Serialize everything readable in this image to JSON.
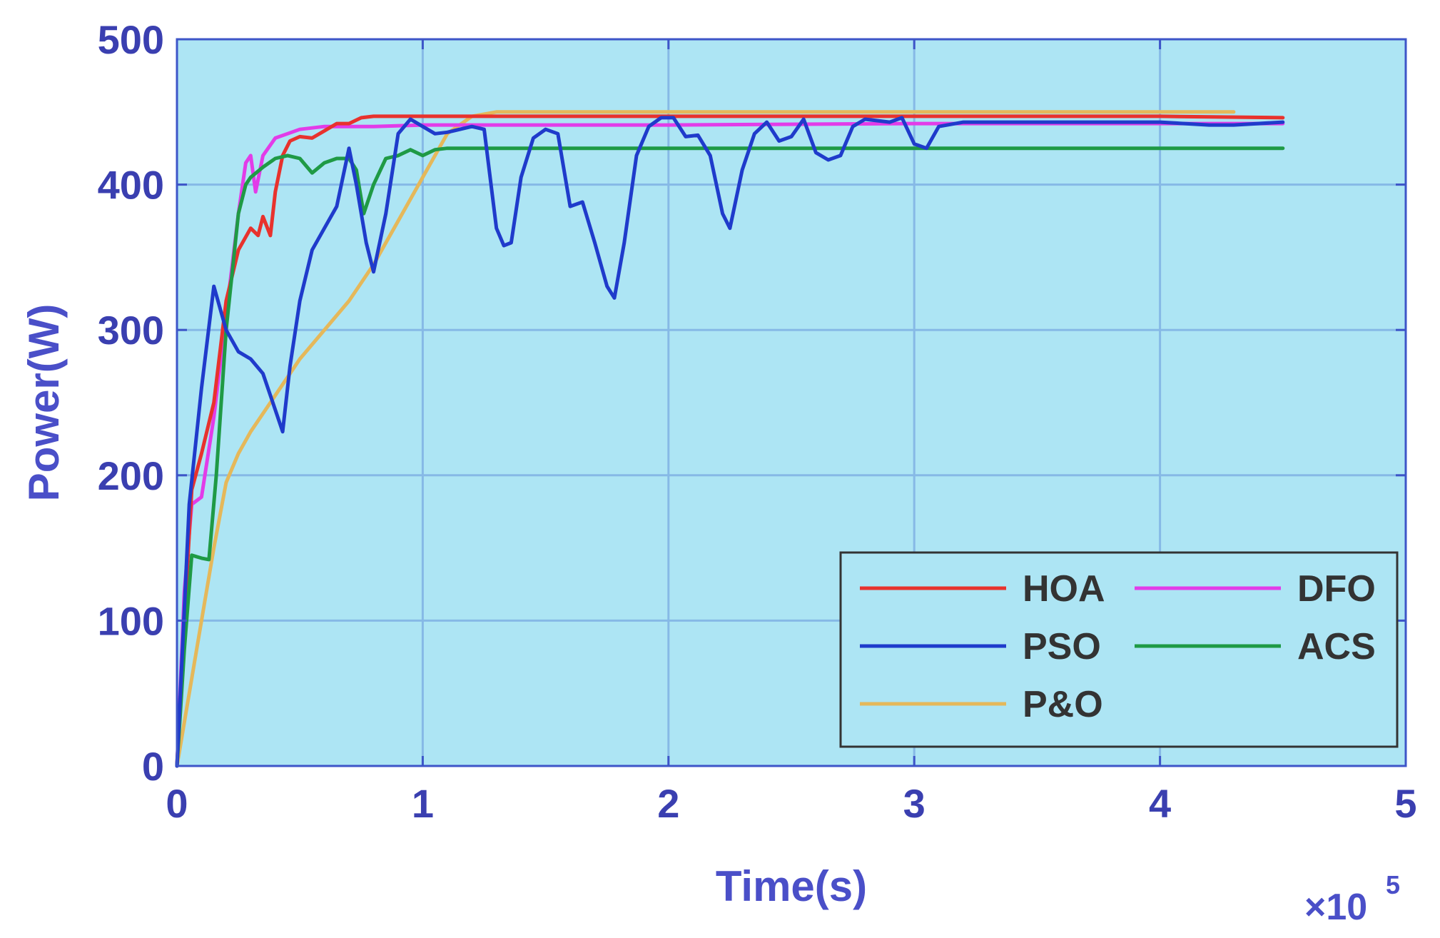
{
  "chart_data": {
    "type": "line",
    "title": "",
    "xlabel": "Time(s)",
    "ylabel": "Power(W)",
    "x_exponent_label": {
      "base": "×10",
      "exponent": "5"
    },
    "xlim": [
      0,
      5
    ],
    "ylim": [
      0,
      500
    ],
    "xticks": [
      0,
      1,
      2,
      3,
      4,
      5
    ],
    "yticks": [
      0,
      100,
      200,
      300,
      400,
      500
    ],
    "grid": true,
    "legend_position": "bottom-right",
    "plot_background": "#ade5f4",
    "series": [
      {
        "name": "HOA",
        "color": "#e8322d",
        "points": [
          [
            0,
            0
          ],
          [
            0.03,
            100
          ],
          [
            0.06,
            190
          ],
          [
            0.1,
            215
          ],
          [
            0.15,
            250
          ],
          [
            0.2,
            320
          ],
          [
            0.25,
            355
          ],
          [
            0.3,
            370
          ],
          [
            0.33,
            365
          ],
          [
            0.35,
            378
          ],
          [
            0.38,
            365
          ],
          [
            0.4,
            395
          ],
          [
            0.43,
            420
          ],
          [
            0.46,
            430
          ],
          [
            0.5,
            433
          ],
          [
            0.55,
            432
          ],
          [
            0.6,
            437
          ],
          [
            0.65,
            442
          ],
          [
            0.7,
            442
          ],
          [
            0.75,
            446
          ],
          [
            0.8,
            447
          ],
          [
            0.85,
            447
          ],
          [
            0.9,
            447
          ],
          [
            1.0,
            447
          ],
          [
            1.2,
            447
          ],
          [
            1.4,
            447
          ],
          [
            2.0,
            447
          ],
          [
            3.0,
            447
          ],
          [
            4.0,
            447
          ],
          [
            4.5,
            446
          ]
        ]
      },
      {
        "name": "DFO",
        "color": "#e23ce8",
        "points": [
          [
            0,
            0
          ],
          [
            0.03,
            120
          ],
          [
            0.06,
            180
          ],
          [
            0.1,
            185
          ],
          [
            0.15,
            240
          ],
          [
            0.2,
            310
          ],
          [
            0.25,
            380
          ],
          [
            0.28,
            415
          ],
          [
            0.3,
            420
          ],
          [
            0.32,
            395
          ],
          [
            0.35,
            420
          ],
          [
            0.4,
            432
          ],
          [
            0.45,
            435
          ],
          [
            0.5,
            438
          ],
          [
            0.6,
            440
          ],
          [
            0.8,
            440
          ],
          [
            1.0,
            441
          ],
          [
            1.5,
            441
          ],
          [
            2.0,
            441
          ],
          [
            3.0,
            442
          ],
          [
            4.0,
            442
          ],
          [
            4.5,
            442
          ]
        ]
      },
      {
        "name": "PSO",
        "color": "#1f3bcb",
        "points": [
          [
            0,
            0
          ],
          [
            0.05,
            180
          ],
          [
            0.1,
            260
          ],
          [
            0.15,
            330
          ],
          [
            0.2,
            300
          ],
          [
            0.25,
            285
          ],
          [
            0.3,
            280
          ],
          [
            0.35,
            270
          ],
          [
            0.4,
            245
          ],
          [
            0.43,
            230
          ],
          [
            0.46,
            275
          ],
          [
            0.5,
            320
          ],
          [
            0.55,
            355
          ],
          [
            0.6,
            370
          ],
          [
            0.65,
            385
          ],
          [
            0.7,
            425
          ],
          [
            0.73,
            400
          ],
          [
            0.77,
            360
          ],
          [
            0.8,
            340
          ],
          [
            0.85,
            380
          ],
          [
            0.9,
            435
          ],
          [
            0.95,
            445
          ],
          [
            1.0,
            440
          ],
          [
            1.05,
            435
          ],
          [
            1.1,
            436
          ],
          [
            1.2,
            440
          ],
          [
            1.25,
            438
          ],
          [
            1.3,
            370
          ],
          [
            1.33,
            358
          ],
          [
            1.36,
            360
          ],
          [
            1.4,
            405
          ],
          [
            1.45,
            432
          ],
          [
            1.5,
            438
          ],
          [
            1.55,
            435
          ],
          [
            1.6,
            385
          ],
          [
            1.65,
            388
          ],
          [
            1.7,
            360
          ],
          [
            1.75,
            330
          ],
          [
            1.78,
            322
          ],
          [
            1.82,
            360
          ],
          [
            1.87,
            420
          ],
          [
            1.92,
            440
          ],
          [
            1.97,
            446
          ],
          [
            2.02,
            446
          ],
          [
            2.07,
            433
          ],
          [
            2.12,
            434
          ],
          [
            2.17,
            420
          ],
          [
            2.22,
            380
          ],
          [
            2.25,
            370
          ],
          [
            2.3,
            410
          ],
          [
            2.35,
            435
          ],
          [
            2.4,
            443
          ],
          [
            2.45,
            430
          ],
          [
            2.5,
            433
          ],
          [
            2.55,
            445
          ],
          [
            2.6,
            422
          ],
          [
            2.65,
            417
          ],
          [
            2.7,
            420
          ],
          [
            2.75,
            440
          ],
          [
            2.8,
            445
          ],
          [
            2.9,
            443
          ],
          [
            2.95,
            446
          ],
          [
            3.0,
            428
          ],
          [
            3.05,
            425
          ],
          [
            3.1,
            440
          ],
          [
            3.2,
            443
          ],
          [
            3.5,
            443
          ],
          [
            4.0,
            443
          ],
          [
            4.2,
            441
          ],
          [
            4.3,
            441
          ],
          [
            4.5,
            443
          ]
        ]
      },
      {
        "name": "ACS",
        "color": "#1f9a45",
        "points": [
          [
            0,
            0
          ],
          [
            0.03,
            80
          ],
          [
            0.06,
            145
          ],
          [
            0.1,
            143
          ],
          [
            0.13,
            142
          ],
          [
            0.16,
            200
          ],
          [
            0.2,
            300
          ],
          [
            0.25,
            380
          ],
          [
            0.28,
            400
          ],
          [
            0.3,
            405
          ],
          [
            0.35,
            412
          ],
          [
            0.4,
            418
          ],
          [
            0.45,
            420
          ],
          [
            0.5,
            418
          ],
          [
            0.55,
            408
          ],
          [
            0.6,
            415
          ],
          [
            0.65,
            418
          ],
          [
            0.7,
            418
          ],
          [
            0.73,
            410
          ],
          [
            0.76,
            380
          ],
          [
            0.8,
            400
          ],
          [
            0.85,
            418
          ],
          [
            0.9,
            420
          ],
          [
            0.95,
            424
          ],
          [
            1.0,
            420
          ],
          [
            1.05,
            424
          ],
          [
            1.1,
            425
          ],
          [
            1.5,
            425
          ],
          [
            2.0,
            425
          ],
          [
            3.0,
            425
          ],
          [
            4.0,
            425
          ],
          [
            4.5,
            425
          ]
        ]
      },
      {
        "name": "P&O",
        "color": "#e5b85a",
        "points": [
          [
            0,
            0
          ],
          [
            0.05,
            50
          ],
          [
            0.1,
            100
          ],
          [
            0.15,
            150
          ],
          [
            0.2,
            195
          ],
          [
            0.25,
            215
          ],
          [
            0.3,
            230
          ],
          [
            0.4,
            255
          ],
          [
            0.5,
            280
          ],
          [
            0.6,
            300
          ],
          [
            0.7,
            320
          ],
          [
            0.8,
            345
          ],
          [
            0.9,
            375
          ],
          [
            1.0,
            405
          ],
          [
            1.1,
            435
          ],
          [
            1.2,
            447
          ],
          [
            1.3,
            450
          ],
          [
            1.5,
            450
          ],
          [
            2.0,
            450
          ],
          [
            3.0,
            450
          ],
          [
            4.0,
            450
          ],
          [
            4.3,
            450
          ]
        ]
      }
    ]
  }
}
